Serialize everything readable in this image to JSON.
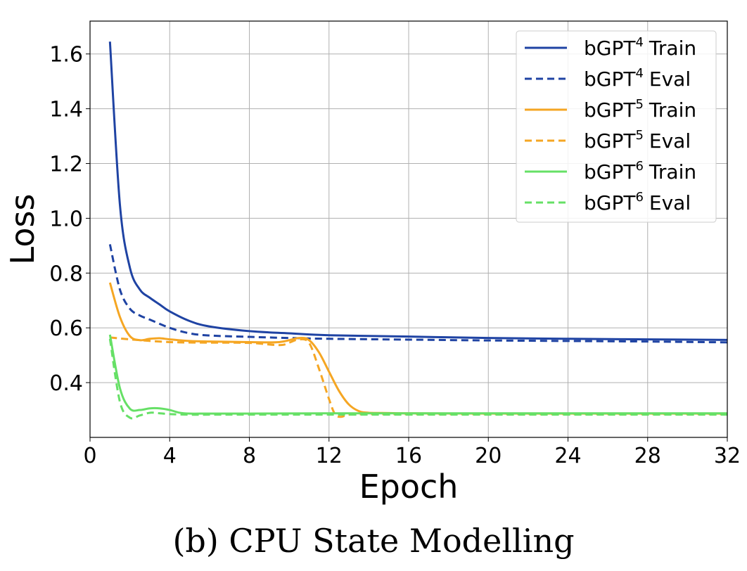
{
  "caption": "(b) CPU State Modelling",
  "chart_data": {
    "type": "line",
    "xlabel": "Epoch",
    "ylabel": "Loss",
    "xlim": [
      0,
      32
    ],
    "ylim": [
      0.2,
      1.72
    ],
    "xticks": [
      0,
      4,
      8,
      12,
      16,
      20,
      24,
      28,
      32
    ],
    "yticks": [
      0.4,
      0.6,
      0.8,
      1.0,
      1.2,
      1.4,
      1.6
    ],
    "ytick_labels": [
      "0.4",
      "0.6",
      "0.8",
      "1.0",
      "1.2",
      "1.4",
      "1.6"
    ],
    "grid": true,
    "legend_position": "top-right",
    "series": [
      {
        "name": "bGPT4 Train",
        "name_base": "bGPT",
        "name_sup": "4",
        "name_suffix": "Train",
        "color": "#1f43a3",
        "style": "solid",
        "x": [
          1,
          1.5,
          2,
          2.5,
          3,
          3.5,
          4,
          5,
          6,
          8,
          10,
          12,
          16,
          20,
          24,
          28,
          32
        ],
        "y": [
          1.645,
          1.05,
          0.82,
          0.74,
          0.71,
          0.685,
          0.66,
          0.625,
          0.605,
          0.588,
          0.58,
          0.573,
          0.568,
          0.563,
          0.56,
          0.558,
          0.556
        ]
      },
      {
        "name": "bGPT4 Eval",
        "name_base": "bGPT",
        "name_sup": "4",
        "name_suffix": "Eval",
        "color": "#1f43a3",
        "style": "dashed",
        "x": [
          1,
          1.5,
          2,
          2.5,
          3,
          4,
          5,
          6,
          8,
          10,
          12,
          16,
          20,
          24,
          28,
          32
        ],
        "y": [
          0.905,
          0.74,
          0.67,
          0.645,
          0.63,
          0.6,
          0.58,
          0.572,
          0.567,
          0.563,
          0.56,
          0.557,
          0.554,
          0.552,
          0.55,
          0.547
        ]
      },
      {
        "name": "bGPT5 Train",
        "name_base": "bGPT",
        "name_sup": "5",
        "name_suffix": "Train",
        "color": "#f5a623",
        "style": "solid",
        "x": [
          1,
          1.5,
          2,
          2.5,
          3,
          3.5,
          4,
          5,
          6,
          8,
          9.5,
          10.5,
          11,
          11.5,
          12,
          12.5,
          13,
          13.5,
          14,
          15,
          16,
          20,
          24,
          28,
          32
        ],
        "y": [
          0.765,
          0.64,
          0.57,
          0.555,
          0.56,
          0.562,
          0.558,
          0.552,
          0.55,
          0.548,
          0.548,
          0.563,
          0.555,
          0.51,
          0.44,
          0.37,
          0.32,
          0.296,
          0.29,
          0.289,
          0.288,
          0.287,
          0.287,
          0.287,
          0.287
        ]
      },
      {
        "name": "bGPT5 Eval",
        "name_base": "bGPT",
        "name_sup": "5",
        "name_suffix": "Eval",
        "color": "#f5a623",
        "style": "dashed",
        "x": [
          1,
          2,
          4,
          6,
          8,
          9.5,
          10,
          10.5,
          11,
          11.5,
          12,
          12.3,
          12.6,
          13,
          14,
          16,
          20,
          24,
          28,
          32
        ],
        "y": [
          0.565,
          0.558,
          0.548,
          0.546,
          0.545,
          0.537,
          0.546,
          0.558,
          0.545,
          0.45,
          0.34,
          0.285,
          0.275,
          0.283,
          0.285,
          0.285,
          0.285,
          0.285,
          0.285,
          0.285
        ]
      },
      {
        "name": "bGPT6 Train",
        "name_base": "bGPT",
        "name_sup": "6",
        "name_suffix": "Train",
        "color": "#66e066",
        "style": "solid",
        "x": [
          1,
          1.5,
          2,
          2.5,
          3,
          3.5,
          4,
          4.5,
          5,
          6,
          8,
          12,
          16,
          20,
          24,
          28,
          32
        ],
        "y": [
          0.575,
          0.38,
          0.305,
          0.3,
          0.306,
          0.306,
          0.3,
          0.29,
          0.287,
          0.287,
          0.287,
          0.288,
          0.288,
          0.288,
          0.288,
          0.288,
          0.288
        ]
      },
      {
        "name": "bGPT6 Eval",
        "name_base": "bGPT",
        "name_sup": "6",
        "name_suffix": "Eval",
        "color": "#66e066",
        "style": "dashed",
        "x": [
          1,
          1.5,
          2,
          2.5,
          3,
          3.5,
          4,
          5,
          6,
          8,
          12,
          16,
          20,
          24,
          28,
          32
        ],
        "y": [
          0.56,
          0.33,
          0.272,
          0.28,
          0.29,
          0.288,
          0.285,
          0.283,
          0.283,
          0.283,
          0.283,
          0.283,
          0.283,
          0.283,
          0.283,
          0.283
        ]
      }
    ]
  }
}
